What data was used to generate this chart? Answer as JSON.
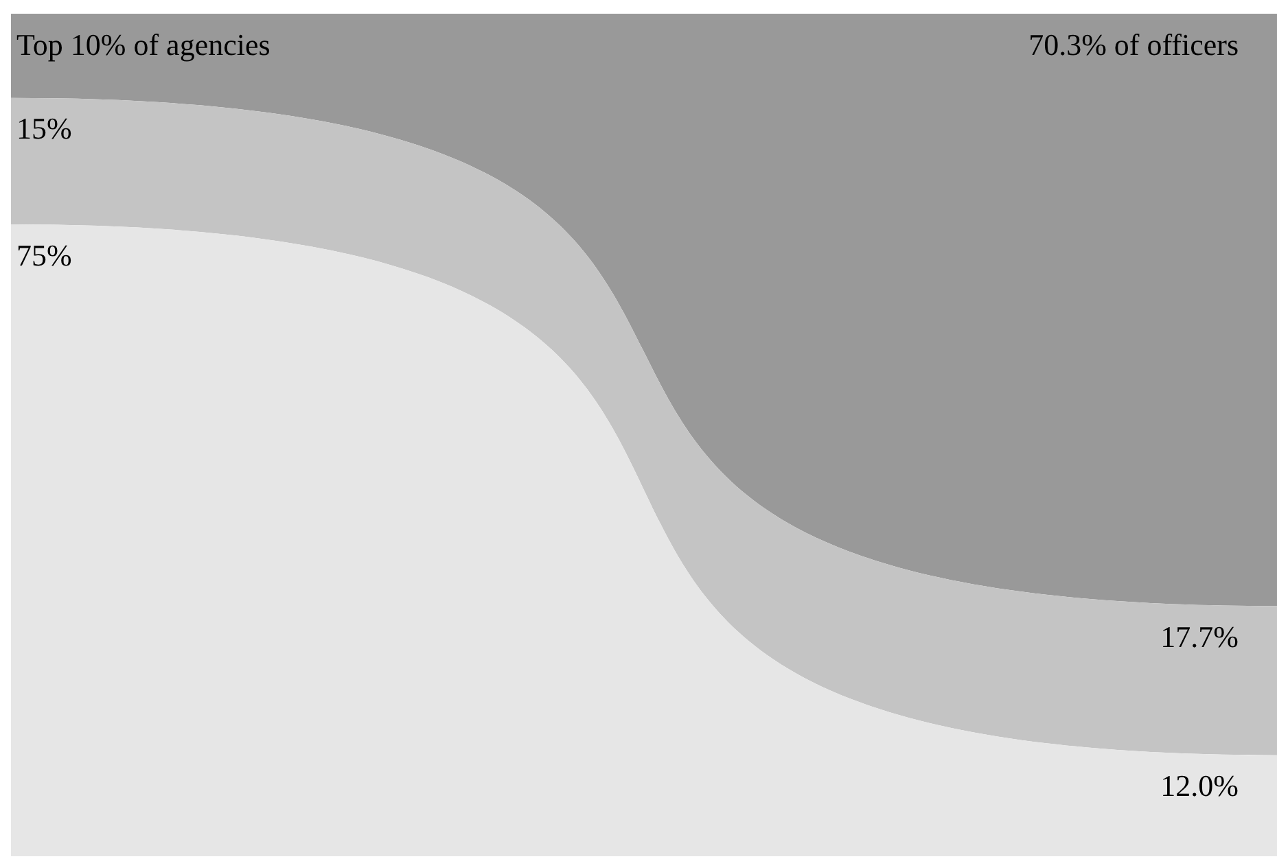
{
  "chart_data": {
    "type": "area",
    "stacked": true,
    "categories": [
      null,
      null
    ],
    "series": [
      {
        "color": "#e6e6e6",
        "values": [
          75,
          12.0
        ],
        "value_labels": [
          "75%",
          "12.0%"
        ]
      },
      {
        "color": "#c4c4c4",
        "values": [
          15,
          17.7
        ],
        "value_labels": [
          "15%",
          "17.7%"
        ]
      },
      {
        "color": "#999999",
        "values": [
          10,
          70.3
        ],
        "value_labels": [
          "Top 10% of agencies",
          "70.3% of officers"
        ]
      }
    ]
  }
}
